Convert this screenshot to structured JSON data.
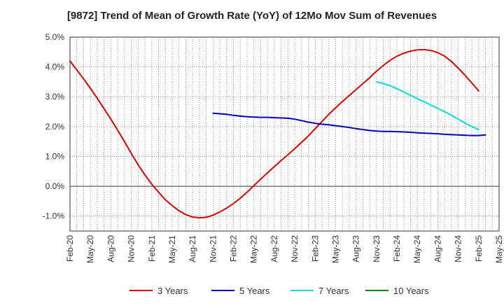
{
  "chart_data": {
    "type": "line",
    "title": "[9872]  Trend of Mean of Growth Rate (YoY) of 12Mo Mov Sum of Revenues",
    "xlabel": "",
    "ylabel": "",
    "ylim": [
      -1.5,
      5.0
    ],
    "yticks": [
      5.0,
      4.0,
      3.0,
      2.0,
      1.0,
      0.0,
      -1.0
    ],
    "ytick_labels": [
      "5.0%",
      "4.0%",
      "3.0%",
      "2.0%",
      "1.0%",
      "0.0%",
      "-1.0%"
    ],
    "x_tick_labels": [
      "Feb-20",
      "May-20",
      "Aug-20",
      "Nov-20",
      "Feb-21",
      "May-21",
      "Aug-21",
      "Nov-21",
      "Feb-22",
      "May-22",
      "Aug-22",
      "Nov-22",
      "Feb-23",
      "May-23",
      "Aug-23",
      "Nov-23",
      "Feb-24",
      "May-24",
      "Aug-24",
      "Nov-24",
      "Feb-25",
      "May-25"
    ],
    "n_months": 63,
    "series": [
      {
        "name": "3 Years",
        "color": "#dd0000",
        "start_month": 0,
        "values": [
          4.2,
          3.9,
          3.6,
          3.28,
          2.95,
          2.6,
          2.25,
          1.88,
          1.5,
          1.1,
          0.72,
          0.38,
          0.07,
          -0.2,
          -0.45,
          -0.65,
          -0.82,
          -0.95,
          -1.03,
          -1.06,
          -1.04,
          -0.97,
          -0.86,
          -0.73,
          -0.58,
          -0.4,
          -0.2,
          0.02,
          0.24,
          0.45,
          0.66,
          0.86,
          1.06,
          1.26,
          1.47,
          1.69,
          1.93,
          2.17,
          2.41,
          2.63,
          2.84,
          3.04,
          3.24,
          3.44,
          3.64,
          3.86,
          4.05,
          4.22,
          4.36,
          4.46,
          4.53,
          4.57,
          4.58,
          4.55,
          4.48,
          4.36,
          4.18,
          3.96,
          3.72,
          3.46,
          3.2
        ]
      },
      {
        "name": "5 Years",
        "color": "#0000bb",
        "start_month": 21,
        "values": [
          2.45,
          2.43,
          2.41,
          2.38,
          2.35,
          2.33,
          2.32,
          2.31,
          2.31,
          2.3,
          2.29,
          2.28,
          2.25,
          2.2,
          2.15,
          2.11,
          2.08,
          2.06,
          2.03,
          2.0,
          1.97,
          1.93,
          1.9,
          1.87,
          1.85,
          1.84,
          1.84,
          1.83,
          1.82,
          1.81,
          1.79,
          1.78,
          1.77,
          1.76,
          1.74,
          1.73,
          1.72,
          1.71,
          1.7,
          1.7,
          1.72
        ]
      },
      {
        "name": "7 Years",
        "color": "#00dddd",
        "start_month": 45,
        "values": [
          3.5,
          3.44,
          3.37,
          3.27,
          3.16,
          3.05,
          2.94,
          2.83,
          2.72,
          2.61,
          2.5,
          2.38,
          2.25,
          2.12,
          2.0,
          1.9
        ]
      },
      {
        "name": "10 Years",
        "color": "#008800",
        "start_month": 0,
        "values": []
      }
    ],
    "legend": [
      "3 Years",
      "5 Years",
      "7 Years",
      "10 Years"
    ],
    "legend_position": "bottom",
    "grid": true
  }
}
